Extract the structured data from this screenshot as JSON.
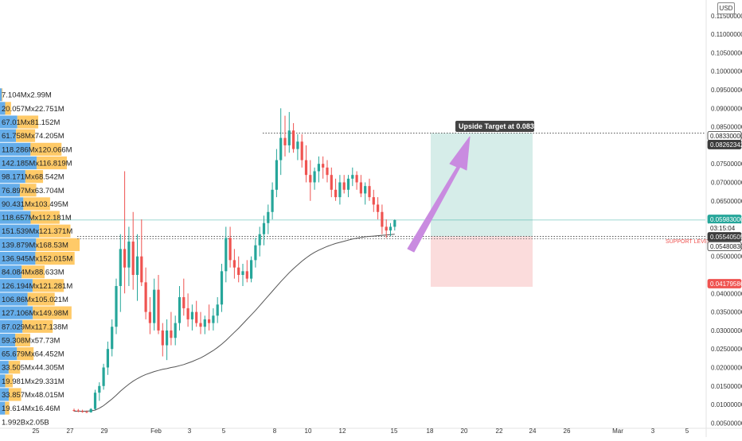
{
  "currency_label": "USD",
  "chart_data": {
    "type": "candlestick",
    "title": "",
    "price_axis": {
      "scale": "linear",
      "range": [
        0.004,
        0.118
      ],
      "ticks": [
        "0.11500000",
        "0.11000000",
        "0.10500000",
        "0.10000000",
        "0.09500000",
        "0.09000000",
        "0.08500000",
        "0.07500000",
        "0.07000000",
        "0.06500000",
        "0.05000000",
        "0.04000000",
        "0.03500000",
        "0.03000000",
        "0.02500000",
        "0.02000000",
        "0.01500000",
        "0.01000000",
        "0.00500000"
      ],
      "tick_values": [
        0.115,
        0.11,
        0.105,
        0.1,
        0.095,
        0.09,
        0.085,
        0.075,
        0.07,
        0.065,
        0.05,
        0.04,
        0.035,
        0.03,
        0.025,
        0.02,
        0.015,
        0.01,
        0.005
      ],
      "top_partial_label": "0.11500000"
    },
    "time_axis": {
      "tick_labels": [
        "25",
        "27",
        "29",
        "Feb",
        "3",
        "5",
        "8",
        "10",
        "12",
        "15",
        "18",
        "20",
        "22",
        "24",
        "26",
        "Mar",
        "3",
        "5"
      ]
    },
    "price_tags": [
      {
        "label": "0.08330000",
        "value": 0.0833,
        "style": "target-line"
      },
      {
        "label": "0.08262342",
        "value": 0.08262,
        "style": "dark"
      },
      {
        "label": "0.05983000",
        "value": 0.05983,
        "style": "green"
      },
      {
        "label": "03:15:04",
        "value": 0.0578,
        "style": "countdown"
      },
      {
        "label": "0.05540505",
        "value": 0.05541,
        "style": "dark"
      },
      {
        "label": "0.05480830",
        "value": 0.05481,
        "style": "outline"
      },
      {
        "label": "0.04179586",
        "value": 0.0418,
        "style": "red"
      }
    ],
    "annotations": {
      "target_label": "Upside Target at 0.0833",
      "support_label": "SUPPORT LEVEL",
      "target_price": 0.0833,
      "support_price": 0.05541,
      "stop_price": 0.0418
    },
    "volume_profile": [
      {
        "label": "7.104Mx2.99M",
        "buy": 7.104,
        "sell": 2.99
      },
      {
        "label": "20.057Mx22.751M",
        "buy": 20.057,
        "sell": 22.751
      },
      {
        "label": "67.01Mx81.152M",
        "buy": 67.01,
        "sell": 81.152
      },
      {
        "label": "61.758Mx74.205M",
        "buy": 61.758,
        "sell": 74.205
      },
      {
        "label": "118.286Mx120.066M",
        "buy": 118.286,
        "sell": 120.066
      },
      {
        "label": "142.185Mx116.819M",
        "buy": 142.185,
        "sell": 116.819
      },
      {
        "label": "98.171Mx68.542M",
        "buy": 98.171,
        "sell": 68.542
      },
      {
        "label": "76.897Mx63.704M",
        "buy": 76.897,
        "sell": 63.704
      },
      {
        "label": "90.431Mx103.495M",
        "buy": 90.431,
        "sell": 103.495
      },
      {
        "label": "118.657Mx112.181M",
        "buy": 118.657,
        "sell": 112.181
      },
      {
        "label": "151.539Mx121.371M",
        "buy": 151.539,
        "sell": 121.371
      },
      {
        "label": "139.879Mx168.53M",
        "buy": 139.879,
        "sell": 168.53
      },
      {
        "label": "136.945Mx152.015M",
        "buy": 136.945,
        "sell": 152.015
      },
      {
        "label": "84.084Mx88.633M",
        "buy": 84.084,
        "sell": 88.633
      },
      {
        "label": "126.194Mx121.281M",
        "buy": 126.194,
        "sell": 121.281
      },
      {
        "label": "106.86Mx105.021M",
        "buy": 106.86,
        "sell": 105.021
      },
      {
        "label": "127.106Mx149.98M",
        "buy": 127.106,
        "sell": 149.98
      },
      {
        "label": "87.029Mx117.138M",
        "buy": 87.029,
        "sell": 117.138
      },
      {
        "label": "59.308Mx57.73M",
        "buy": 59.308,
        "sell": 57.73
      },
      {
        "label": "65.679Mx64.452M",
        "buy": 65.679,
        "sell": 64.452
      },
      {
        "label": "33.505Mx44.305M",
        "buy": 33.505,
        "sell": 44.305
      },
      {
        "label": "19.981Mx29.331M",
        "buy": 19.981,
        "sell": 29.331
      },
      {
        "label": "33.857Mx48.015M",
        "buy": 33.857,
        "sell": 48.015
      },
      {
        "label": "19.614Mx16.46M",
        "buy": 19.614,
        "sell": 16.46
      },
      {
        "label": "1.992Bx2.05B",
        "buy": 0,
        "sell": 0
      }
    ],
    "volume_profile_price_range": [
      0.0035,
      0.0955
    ],
    "candles": [
      [
        0.0085,
        0.0089,
        0.0081,
        0.0084
      ],
      [
        0.0084,
        0.0088,
        0.0079,
        0.0082
      ],
      [
        0.0082,
        0.0086,
        0.0078,
        0.008
      ],
      [
        0.008,
        0.0084,
        0.0077,
        0.0079
      ],
      [
        0.0079,
        0.009,
        0.0078,
        0.0088
      ],
      [
        0.0088,
        0.014,
        0.0085,
        0.0132
      ],
      [
        0.0132,
        0.016,
        0.011,
        0.015
      ],
      [
        0.015,
        0.021,
        0.014,
        0.02
      ],
      [
        0.02,
        0.027,
        0.018,
        0.025
      ],
      [
        0.025,
        0.033,
        0.023,
        0.031
      ],
      [
        0.031,
        0.044,
        0.029,
        0.042
      ],
      [
        0.042,
        0.056,
        0.035,
        0.052
      ],
      [
        0.052,
        0.073,
        0.04,
        0.047
      ],
      [
        0.047,
        0.058,
        0.042,
        0.054
      ],
      [
        0.054,
        0.062,
        0.041,
        0.045
      ],
      [
        0.045,
        0.056,
        0.038,
        0.05
      ],
      [
        0.05,
        0.06,
        0.042,
        0.043
      ],
      [
        0.043,
        0.047,
        0.033,
        0.035
      ],
      [
        0.035,
        0.039,
        0.029,
        0.032
      ],
      [
        0.032,
        0.044,
        0.03,
        0.041
      ],
      [
        0.041,
        0.045,
        0.029,
        0.03
      ],
      [
        0.03,
        0.032,
        0.023,
        0.026
      ],
      [
        0.026,
        0.033,
        0.022,
        0.03
      ],
      [
        0.03,
        0.035,
        0.026,
        0.028
      ],
      [
        0.028,
        0.034,
        0.026,
        0.032
      ],
      [
        0.032,
        0.042,
        0.03,
        0.039
      ],
      [
        0.039,
        0.044,
        0.034,
        0.036
      ],
      [
        0.036,
        0.04,
        0.031,
        0.033
      ],
      [
        0.033,
        0.037,
        0.03,
        0.035
      ],
      [
        0.035,
        0.038,
        0.031,
        0.032
      ],
      [
        0.032,
        0.035,
        0.029,
        0.031
      ],
      [
        0.031,
        0.034,
        0.029,
        0.033
      ],
      [
        0.033,
        0.037,
        0.03,
        0.032
      ],
      [
        0.032,
        0.036,
        0.03,
        0.034
      ],
      [
        0.034,
        0.039,
        0.032,
        0.037
      ],
      [
        0.037,
        0.048,
        0.035,
        0.046
      ],
      [
        0.046,
        0.058,
        0.043,
        0.055
      ],
      [
        0.055,
        0.058,
        0.047,
        0.049
      ],
      [
        0.049,
        0.052,
        0.044,
        0.047
      ],
      [
        0.047,
        0.05,
        0.043,
        0.045
      ],
      [
        0.045,
        0.048,
        0.042,
        0.046
      ],
      [
        0.046,
        0.049,
        0.043,
        0.044
      ],
      [
        0.044,
        0.05,
        0.043,
        0.049
      ],
      [
        0.049,
        0.055,
        0.047,
        0.053
      ],
      [
        0.053,
        0.058,
        0.05,
        0.056
      ],
      [
        0.056,
        0.061,
        0.053,
        0.059
      ],
      [
        0.059,
        0.064,
        0.056,
        0.062
      ],
      [
        0.062,
        0.07,
        0.06,
        0.068
      ],
      [
        0.068,
        0.079,
        0.066,
        0.076
      ],
      [
        0.076,
        0.09,
        0.072,
        0.082
      ],
      [
        0.082,
        0.088,
        0.077,
        0.08
      ],
      [
        0.08,
        0.089,
        0.078,
        0.084
      ],
      [
        0.084,
        0.086,
        0.078,
        0.079
      ],
      [
        0.079,
        0.083,
        0.076,
        0.081
      ],
      [
        0.081,
        0.083,
        0.074,
        0.076
      ],
      [
        0.076,
        0.08,
        0.07,
        0.072
      ],
      [
        0.072,
        0.076,
        0.065,
        0.07
      ],
      [
        0.07,
        0.074,
        0.068,
        0.073
      ],
      [
        0.073,
        0.077,
        0.07,
        0.075
      ],
      [
        0.075,
        0.077,
        0.071,
        0.074
      ],
      [
        0.074,
        0.076,
        0.07,
        0.072
      ],
      [
        0.072,
        0.074,
        0.066,
        0.068
      ],
      [
        0.068,
        0.071,
        0.065,
        0.066
      ],
      [
        0.066,
        0.072,
        0.064,
        0.07
      ],
      [
        0.07,
        0.072,
        0.067,
        0.068
      ],
      [
        0.068,
        0.072,
        0.066,
        0.071
      ],
      [
        0.071,
        0.074,
        0.069,
        0.072
      ],
      [
        0.072,
        0.073,
        0.068,
        0.07
      ],
      [
        0.07,
        0.072,
        0.066,
        0.067
      ],
      [
        0.067,
        0.07,
        0.064,
        0.069
      ],
      [
        0.069,
        0.071,
        0.065,
        0.066
      ],
      [
        0.066,
        0.068,
        0.062,
        0.064
      ],
      [
        0.064,
        0.066,
        0.06,
        0.062
      ],
      [
        0.062,
        0.064,
        0.056,
        0.058
      ],
      [
        0.058,
        0.06,
        0.055,
        0.057
      ],
      [
        0.057,
        0.059,
        0.0555,
        0.058
      ],
      [
        0.058,
        0.06,
        0.057,
        0.0598
      ]
    ],
    "moving_average": [
      0.0082,
      0.0082,
      0.0082,
      0.0082,
      0.0083,
      0.0085,
      0.009,
      0.0097,
      0.0106,
      0.0115,
      0.0125,
      0.0136,
      0.0146,
      0.0155,
      0.0163,
      0.017,
      0.0176,
      0.0181,
      0.0185,
      0.0189,
      0.0192,
      0.0195,
      0.0197,
      0.02,
      0.0202,
      0.0205,
      0.0208,
      0.0212,
      0.0216,
      0.0221,
      0.0226,
      0.0232,
      0.0239,
      0.0246,
      0.0254,
      0.0263,
      0.0273,
      0.0284,
      0.0295,
      0.0306,
      0.0318,
      0.033,
      0.0342,
      0.0354,
      0.0367,
      0.038,
      0.0393,
      0.0406,
      0.0419,
      0.0432,
      0.0444,
      0.0456,
      0.0467,
      0.0477,
      0.0487,
      0.0496,
      0.0504,
      0.0511,
      0.0517,
      0.0522,
      0.0527,
      0.0531,
      0.0535,
      0.0538,
      0.0541,
      0.0544,
      0.0547,
      0.0549,
      0.0551,
      0.0553,
      0.0554,
      0.0555,
      0.0556,
      0.0557,
      0.0558,
      0.0559,
      0.056
    ],
    "colors": {
      "up": "#26a69a",
      "down": "#ef5350",
      "ma": "#555555",
      "vp_buy": "#4a9fe6",
      "vp_sell": "#ffc14d",
      "target_zone": "#d6ede9",
      "stop_zone": "#fbdcdc",
      "arrow": "#c98be0"
    }
  }
}
